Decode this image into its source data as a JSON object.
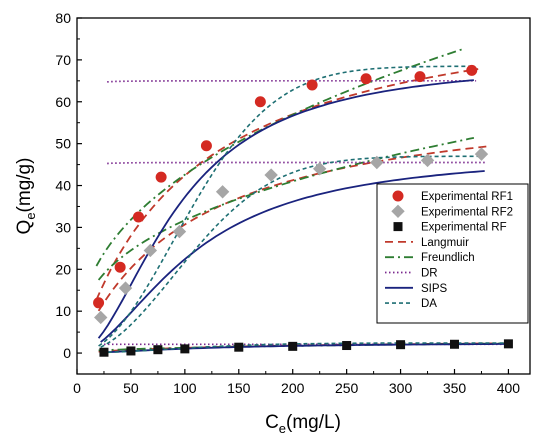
{
  "chart_data": {
    "type": "scatter",
    "xlabel": "C",
    "xlabel_sub": "e",
    "xlabel_unit": "(mg/L)",
    "ylabel": "Q",
    "ylabel_sub": "e",
    "ylabel_unit": "(mg/g)",
    "xlim": [
      0,
      420
    ],
    "ylim": [
      -5,
      80
    ],
    "xticks": [
      0,
      50,
      100,
      150,
      200,
      250,
      300,
      350,
      400
    ],
    "yticks": [
      0,
      10,
      20,
      30,
      40,
      50,
      60,
      70,
      80
    ],
    "grid": false,
    "legend_position": "right",
    "series": [
      {
        "name": "Experimental RF1",
        "kind": "points",
        "marker": "circle",
        "color": "#d42a22",
        "x": [
          20,
          40,
          57,
          78,
          120,
          170,
          218,
          268,
          318,
          366
        ],
        "y": [
          12,
          20.5,
          32.5,
          42,
          49.5,
          60,
          64,
          65.5,
          66,
          67.5
        ]
      },
      {
        "name": "Experimental RF2",
        "kind": "points",
        "marker": "diamond",
        "color": "#a6a6a6",
        "x": [
          22,
          45,
          68,
          95,
          135,
          180,
          225,
          278,
          325,
          375
        ],
        "y": [
          8.5,
          15.5,
          24.5,
          29,
          38.5,
          42.5,
          44,
          45.5,
          46,
          47.5
        ]
      },
      {
        "name": "Experimental RF",
        "kind": "points",
        "marker": "square",
        "color": "#111111",
        "x": [
          25,
          50,
          75,
          100,
          150,
          200,
          250,
          300,
          350,
          400
        ],
        "y": [
          0.2,
          0.5,
          0.8,
          1,
          1.4,
          1.6,
          1.8,
          2,
          2.1,
          2.2
        ]
      },
      {
        "name": "Langmuir",
        "kind": "fit",
        "model": "langmuir",
        "style": "dashed",
        "color": "#c0392b",
        "targets": [
          {
            "qm": 87,
            "kl": 0.0095,
            "from": 18,
            "to": 372
          },
          {
            "qm": 63,
            "kl": 0.0095,
            "from": 20,
            "to": 380
          },
          {
            "qm": 3.3,
            "kl": 0.006,
            "from": 20,
            "to": 402
          }
        ]
      },
      {
        "name": "Freundlich",
        "kind": "fit",
        "model": "freundlich",
        "style": "dashdot",
        "color": "#2e7d32",
        "targets": [
          {
            "kf": 6.2,
            "n": 2.39,
            "from": 18,
            "to": 360
          },
          {
            "kf": 5.76,
            "n": 2.7,
            "from": 20,
            "to": 368
          },
          {
            "kf": 0.17,
            "n": 2.3,
            "from": 20,
            "to": 402
          }
        ]
      },
      {
        "name": "DR",
        "kind": "fit",
        "model": "dr",
        "style": "dotted",
        "color": "#7b2a8f",
        "targets": [
          {
            "qm": 65,
            "k": 0.5,
            "e0": 3.8,
            "from": 28,
            "to": 370
          },
          {
            "qm": 45.5,
            "k": 0.7,
            "e0": 3.7,
            "from": 28,
            "to": 380
          },
          {
            "qm": 2.1,
            "k": 0.5,
            "e0": 3.4,
            "from": 25,
            "to": 402
          }
        ]
      },
      {
        "name": "SIPS",
        "kind": "fit",
        "model": "sips",
        "style": "solid",
        "color": "#1a237e",
        "targets": [
          {
            "qm": 70,
            "ks": 0.00018,
            "n": 1.9,
            "from": 20,
            "to": 368
          },
          {
            "qm": 48,
            "ks": 0.00022,
            "n": 1.8,
            "from": 22,
            "to": 378
          },
          {
            "qm": 2.5,
            "ks": 0.00045,
            "n": 1.6,
            "from": 22,
            "to": 402
          }
        ]
      },
      {
        "name": "DA",
        "kind": "fit",
        "model": "da",
        "style": "shortdash",
        "color": "#1e6f73",
        "targets": [
          {
            "qm": 68.5,
            "k": 0.02,
            "n": 2,
            "from": 20,
            "to": 368
          },
          {
            "qm": 47,
            "k": 0.02,
            "n": 2,
            "from": 22,
            "to": 378
          },
          {
            "qm": 2.4,
            "k": 0.02,
            "n": 1.8,
            "from": 22,
            "to": 402
          }
        ]
      }
    ]
  }
}
